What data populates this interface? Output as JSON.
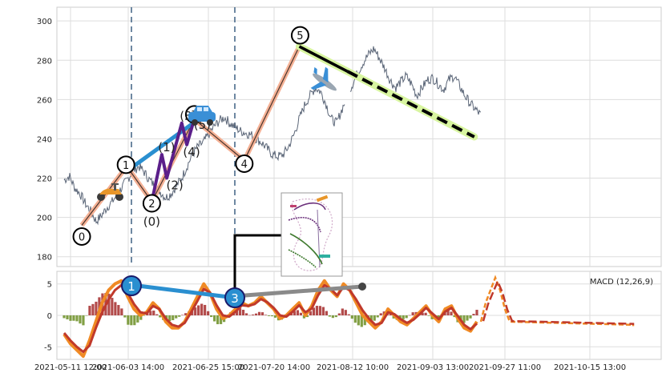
{
  "chart_data": [
    {
      "type": "line",
      "panel": "price",
      "ylim": [
        175,
        307
      ],
      "y_ticks": [
        180,
        200,
        220,
        240,
        260,
        280,
        300
      ],
      "x_tick_labels": [
        "2021-05-11 12:00",
        "2021-06-03 14:00",
        "2021-06-25 15:00",
        "2021-07-20 14:00",
        "2021-08-12 10:00",
        "2021-09-03 13:00",
        "2021-09-27 11:00",
        "2021-10-15 13:00"
      ],
      "series": [
        {
          "values": [
            219,
            221,
            215,
            212,
            207,
            203,
            198,
            201,
            205,
            208,
            212,
            216,
            220,
            224,
            226,
            223,
            219,
            216,
            213,
            210,
            212,
            216,
            220,
            226,
            232,
            236,
            238,
            242,
            246,
            249,
            251,
            248,
            246,
            244,
            243,
            242,
            240,
            238,
            235,
            232,
            231,
            232,
            236,
            242,
            250,
            257,
            262,
            266,
            264,
            258,
            250,
            248,
            255,
            262,
            268,
            274,
            279,
            283,
            286,
            281,
            276,
            270,
            266,
            269,
            272,
            268,
            262,
            266,
            270,
            271,
            268,
            265,
            270,
            272,
            267,
            262,
            258,
            255,
            252
          ]
        }
      ],
      "elliott_waves": {
        "major": [
          {
            "label": "0",
            "x": "2021-05-16",
            "y": 196
          },
          {
            "label": "1",
            "x": "2021-06-03",
            "y": 226
          },
          {
            "label": "2",
            "x": "2021-06-13",
            "y": 208
          },
          {
            "label": "3",
            "x": "2021-06-30",
            "y": 250
          },
          {
            "label": "4",
            "x": "2021-07-20",
            "y": 229
          },
          {
            "label": "5",
            "x": "2021-08-11",
            "y": 287
          }
        ],
        "minor": [
          {
            "label": "(0)",
            "x": "2021-06-13",
            "y": 208
          },
          {
            "label": "(1)",
            "x": "2021-06-17",
            "y": 232
          },
          {
            "label": "(2)",
            "x": "2021-06-19",
            "y": 220
          },
          {
            "label": "(3)",
            "x": "2021-06-25",
            "y": 248
          },
          {
            "label": "(4)",
            "x": "2021-06-27",
            "y": 237
          },
          {
            "label": "(5)",
            "x": "2021-06-30",
            "y": 250
          }
        ],
        "projection": {
          "from": {
            "x": "2021-08-11",
            "y": 287
          },
          "to": {
            "x": "2021-10-20",
            "y": 241
          }
        }
      }
    },
    {
      "type": "line",
      "panel": "macd",
      "ylim": [
        -7,
        7
      ],
      "y_ticks": [
        -5,
        0,
        5
      ],
      "legend_text": "MACD (12,26,9)",
      "series": [
        {
          "color": "#f08a24",
          "values": [
            -3,
            -4.5,
            -5.5,
            -6.5,
            -4,
            -1,
            2,
            4,
            5,
            5.5,
            3,
            1,
            0,
            0.5,
            2,
            1,
            -1,
            -2,
            -2,
            -1,
            1,
            3,
            5,
            3.5,
            1,
            -0.5,
            0,
            1,
            2,
            1.5,
            2,
            3,
            2,
            1,
            -0.5,
            0,
            1,
            2,
            0,
            1.5,
            4,
            5.5,
            4,
            3,
            5,
            4,
            2,
            0,
            -1,
            -2,
            -1,
            1,
            0,
            -1,
            -1.5,
            -0.5,
            0.5,
            1.5,
            0,
            -1,
            1,
            1.5,
            -0.5,
            -2,
            -2.5,
            -1
          ]
        },
        {
          "color": "#c0392b",
          "values": [
            -2.8,
            -4,
            -5,
            -5.8,
            -4.8,
            -2,
            0.5,
            2.5,
            4,
            4.8,
            3.6,
            1.8,
            0.5,
            0.3,
            1.5,
            1,
            -0.5,
            -1.5,
            -1.8,
            -1.2,
            0.5,
            2.3,
            4.2,
            3.6,
            1.6,
            0,
            -0.2,
            0.6,
            1.6,
            1.5,
            1.8,
            2.6,
            2.1,
            1.2,
            0,
            -0.2,
            0.6,
            1.6,
            0.5,
            1.1,
            3.2,
            4.8,
            4.2,
            3.2,
            4.5,
            4,
            2.5,
            0.8,
            -0.5,
            -1.5,
            -1.2,
            0.5,
            0.2,
            -0.6,
            -1.2,
            -0.7,
            0.2,
            1.2,
            0.3,
            -0.6,
            0.6,
            1.2,
            -0.1,
            -1.5,
            -2.2,
            -1.3
          ]
        }
      ],
      "projection_values": [
        -1,
        2,
        4,
        6,
        4,
        1,
        -1,
        -1.5,
        -1.6,
        -1.7,
        -1.7,
        -1.7,
        -1.7,
        -1.7,
        -1.7
      ]
    }
  ],
  "icons": [
    "scooter-icon",
    "car-icon",
    "airplane-icon"
  ]
}
